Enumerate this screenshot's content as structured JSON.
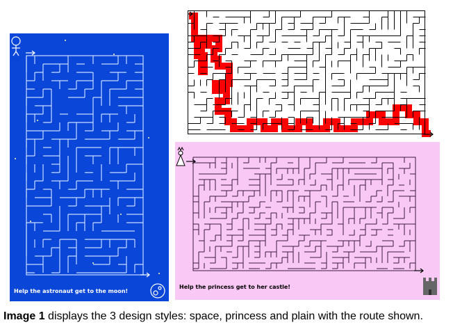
{
  "space": {
    "caption": "Help the astronaut get to the moon!",
    "bg": "#0a47d9",
    "wall": "#c8dcff",
    "icons": [
      "astronaut-icon",
      "moon-icon",
      "start-arrow-icon",
      "finish-arrow-icon"
    ]
  },
  "plain": {
    "route": "#ff0000",
    "icons": [
      "start-arrow-icon",
      "finish-arrow-icon"
    ]
  },
  "princess": {
    "caption": "Help the princess get to her castle!",
    "bg": "#f9c8f5",
    "icons": [
      "princess-icon",
      "castle-icon",
      "start-arrow-icon",
      "finish-arrow-icon"
    ]
  },
  "caption": {
    "label": "Image 1",
    "text": " displays the 3 design styles: space, princess and plain with the route shown."
  }
}
